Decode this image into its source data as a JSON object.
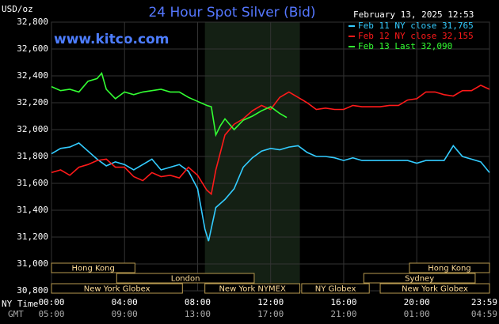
{
  "chart_data": {
    "type": "line",
    "title": "24 Hour Spot Silver (Bid)",
    "subtitle": "www.kitco.com",
    "y_label": "USD/oz",
    "timestamp": "February 13, 2025 12:53",
    "x_row_labels": [
      "NY Time",
      "GMT"
    ],
    "xlim": [
      0,
      23.9833
    ],
    "xticks": [
      {
        "value": 0,
        "label": "00:00"
      },
      {
        "value": 4,
        "label": "04:00"
      },
      {
        "value": 8,
        "label": "08:00"
      },
      {
        "value": 12,
        "label": "12:00"
      },
      {
        "value": 16,
        "label": "16:00"
      },
      {
        "value": 20,
        "label": "20:00"
      },
      {
        "value": 23.9833,
        "label": "23:59"
      }
    ],
    "gmt_labels": [
      "05:00",
      "09:00",
      "13:00",
      "17:00",
      "21:00",
      "01:00",
      "04:59"
    ],
    "ylim": [
      30800,
      32800
    ],
    "yticks": [
      {
        "value": 30800,
        "label": "30,800"
      },
      {
        "value": 31000,
        "label": "31,000"
      },
      {
        "value": 31200,
        "label": "31,200"
      },
      {
        "value": 31400,
        "label": "31,400"
      },
      {
        "value": 31600,
        "label": "31,600"
      },
      {
        "value": 31800,
        "label": "31,800"
      },
      {
        "value": 32000,
        "label": "32,000"
      },
      {
        "value": 32200,
        "label": "32,200"
      },
      {
        "value": 32400,
        "label": "32,400"
      },
      {
        "value": 32600,
        "label": "32,600"
      },
      {
        "value": 32800,
        "label": "32,800"
      }
    ],
    "grid": true,
    "sessions": [
      [
        {
          "name": "Hong Kong",
          "start": 0,
          "end": 4.57
        },
        {
          "name": "Hong Kong",
          "start": 19.6,
          "end": 23.9833
        }
      ],
      [
        {
          "name": "London",
          "start": 3.57,
          "end": 11.1
        },
        {
          "name": "Sydney",
          "start": 17.1,
          "end": 23.2
        }
      ],
      [
        {
          "name": "New York Globex",
          "start": 0,
          "end": 7.17
        },
        {
          "name": "New York NYMEX",
          "start": 8.4,
          "end": 13.6
        },
        {
          "name": "NY Globex",
          "start": 13.7,
          "end": 17.4
        },
        {
          "name": "New York Globex",
          "start": 18.0,
          "end": 23.9833
        }
      ]
    ],
    "series": [
      {
        "name": "Feb 11 NY close 31,765",
        "color": "#33ccff",
        "x": [
          0,
          0.5,
          1,
          1.5,
          2,
          2.5,
          3,
          3.5,
          4,
          4.5,
          5,
          5.5,
          6,
          6.5,
          7,
          7.5,
          8,
          8.4,
          8.6,
          9,
          9.5,
          10,
          10.5,
          11,
          11.5,
          12,
          12.5,
          13,
          13.5,
          14,
          14.5,
          15,
          15.5,
          16,
          16.5,
          17,
          17.5,
          18,
          18.5,
          19,
          19.5,
          20,
          20.5,
          21,
          21.5,
          22,
          22.5,
          23,
          23.5,
          23.9833
        ],
        "values": [
          31820,
          31860,
          31870,
          31900,
          31840,
          31780,
          31730,
          31760,
          31740,
          31700,
          31740,
          31780,
          31700,
          31720,
          31740,
          31690,
          31560,
          31260,
          31170,
          31420,
          31480,
          31560,
          31720,
          31790,
          31840,
          31860,
          31850,
          31870,
          31880,
          31830,
          31800,
          31800,
          31790,
          31770,
          31790,
          31770,
          31770,
          31770,
          31770,
          31770,
          31770,
          31750,
          31770,
          31770,
          31770,
          31880,
          31800,
          31780,
          31760,
          31680
        ]
      },
      {
        "name": "Feb 12 NY close 32,155",
        "color": "#ff1a1a",
        "x": [
          0,
          0.5,
          1,
          1.5,
          2,
          2.5,
          3,
          3.5,
          4,
          4.5,
          5,
          5.5,
          6,
          6.5,
          7,
          7.5,
          8,
          8.5,
          8.75,
          9,
          9.5,
          10,
          10.5,
          11,
          11.5,
          12,
          12.5,
          13,
          13.5,
          14,
          14.5,
          15,
          15.5,
          16,
          16.5,
          17,
          17.5,
          18,
          18.5,
          19,
          19.5,
          20,
          20.5,
          21,
          21.5,
          22,
          22.5,
          23,
          23.5,
          23.9833
        ],
        "values": [
          31680,
          31700,
          31660,
          31720,
          31740,
          31770,
          31780,
          31720,
          31720,
          31650,
          31620,
          31680,
          31650,
          31660,
          31640,
          31720,
          31660,
          31550,
          31520,
          31700,
          31960,
          32040,
          32080,
          32140,
          32180,
          32150,
          32240,
          32280,
          32240,
          32200,
          32150,
          32160,
          32150,
          32150,
          32180,
          32170,
          32170,
          32170,
          32180,
          32180,
          32220,
          32230,
          32280,
          32280,
          32260,
          32250,
          32290,
          32290,
          32330,
          32300
        ]
      },
      {
        "name": "Feb 13 Last 32,090",
        "color": "#33ff33",
        "x": [
          0,
          0.5,
          1,
          1.5,
          2,
          2.5,
          2.75,
          3,
          3.5,
          4,
          4.5,
          5,
          5.5,
          6,
          6.5,
          7,
          7.5,
          8,
          8.5,
          8.75,
          9,
          9.25,
          9.5,
          10,
          10.5,
          11,
          11.5,
          12,
          12.5,
          12.88
        ],
        "values": [
          32320,
          32290,
          32300,
          32280,
          32360,
          32380,
          32420,
          32300,
          32230,
          32280,
          32260,
          32280,
          32290,
          32300,
          32280,
          32280,
          32240,
          32210,
          32180,
          32170,
          31960,
          32030,
          32080,
          32000,
          32070,
          32100,
          32140,
          32170,
          32120,
          32090
        ]
      }
    ]
  }
}
